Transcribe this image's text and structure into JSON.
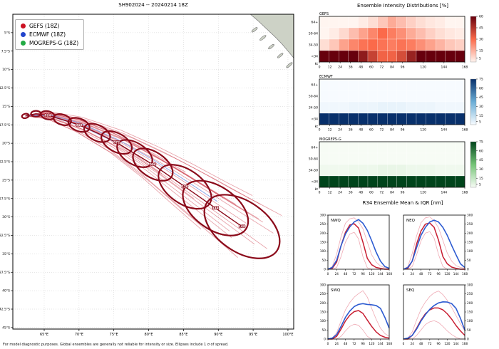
{
  "title": "SH902024 -- 20240214 18Z",
  "footer": "For model diagnostic purposes. Global ensembles are generally not reliable for intensity or size. Ellipses include 1 σ of spread.",
  "sections": {
    "intensity_title": "Ensemble Intensity Distributions [%]",
    "r34_title": "R34 Ensemble Mean & IQR [nm]"
  },
  "legend": {
    "items": [
      {
        "label": "GEFS (18Z)",
        "color": "#cc1122"
      },
      {
        "label": "ECMWF (18Z)",
        "color": "#2244cc"
      },
      {
        "label": "MOGREPS-G (18Z)",
        "color": "#22aa44"
      }
    ]
  },
  "chart_data": [
    {
      "id": "track_map",
      "type": "scatter",
      "title": "SH902024 -- 20240214 18Z",
      "xlim": [
        60.5,
        100.8
      ],
      "ylim": [
        -45.2,
        -2.5
      ],
      "xticks": [
        65,
        70,
        75,
        80,
        85,
        90,
        95,
        100
      ],
      "xtick_labels": [
        "65°E",
        "70°E",
        "75°E",
        "80°E",
        "85°E",
        "90°E",
        "95°E",
        "100°E"
      ],
      "yticks": [
        5,
        7.5,
        10,
        12.5,
        15,
        17.5,
        20,
        22.5,
        25,
        27.5,
        30,
        32.5,
        35,
        37.5,
        40,
        42.5,
        45
      ],
      "ytick_labels": [
        "5°S",
        "7.5°S",
        "10°S",
        "12.5°S",
        "15°S",
        "17.5°S",
        "20°S",
        "22.5°S",
        "25°S",
        "27.5°S",
        "30°S",
        "32.5°S",
        "35°S",
        "37.5°S",
        "40°S",
        "42.5°S",
        "45°S"
      ],
      "land": {
        "fill": "#cdd2c6",
        "stroke": "#777777",
        "main": [
          [
            94.6,
            -2.5
          ],
          [
            95.6,
            -3.3
          ],
          [
            96.5,
            -4.1
          ],
          [
            97.4,
            -4.9
          ],
          [
            98.3,
            -5.7
          ],
          [
            99.2,
            -6.6
          ],
          [
            100.1,
            -7.6
          ],
          [
            100.8,
            -8.4
          ],
          [
            100.8,
            -2.5
          ]
        ],
        "islands": [
          [
            95.2,
            -4.6,
            0.5,
            0.15,
            -38
          ],
          [
            96.4,
            -5.7,
            0.55,
            0.16,
            -38
          ],
          [
            97.6,
            -6.9,
            0.5,
            0.15,
            -38
          ],
          [
            98.9,
            -8.1,
            0.5,
            0.14,
            -40
          ],
          [
            100.2,
            -9.4,
            0.55,
            0.15,
            -40
          ]
        ]
      },
      "mean_track": {
        "hours": [
          0,
          12,
          24,
          36,
          48,
          60,
          72,
          84,
          96,
          120,
          144,
          168
        ],
        "lon": [
          62.3,
          63.8,
          65.5,
          67.6,
          70.0,
          72.6,
          75.4,
          78.0,
          80.6,
          85.2,
          89.6,
          93.4
        ],
        "lat": [
          -16.3,
          -16.0,
          -16.2,
          -16.8,
          -17.5,
          -18.6,
          -19.9,
          -21.4,
          -22.9,
          -25.9,
          -28.8,
          -31.3
        ],
        "rx": [
          0.5,
          0.7,
          1.0,
          1.3,
          1.6,
          2.0,
          2.4,
          2.8,
          3.2,
          4.3,
          5.3,
          6.1
        ],
        "ry": [
          0.3,
          0.4,
          0.55,
          0.7,
          0.85,
          1.05,
          1.25,
          1.45,
          1.7,
          2.3,
          2.9,
          3.4
        ],
        "labels": {
          "hours": [
            24,
            48,
            72,
            96,
            120,
            144,
            168
          ],
          "text": [
            "024",
            "048",
            "072",
            "096",
            "120",
            "144",
            "168"
          ]
        },
        "color": "#8b0a1a"
      },
      "members": {
        "hours": [
          0,
          24,
          48,
          72,
          96,
          120,
          144,
          168
        ],
        "base_lon": [
          62.3,
          65.5,
          70.0,
          75.4,
          80.6,
          85.2,
          89.6,
          93.4
        ],
        "base_lat": [
          -16.3,
          -16.2,
          -17.5,
          -19.9,
          -22.9,
          -25.9,
          -28.8,
          -31.3
        ],
        "spread": [
          0,
          0.35,
          0.75,
          1.2,
          1.7,
          2.2,
          2.6,
          3.0
        ],
        "gefs_offsets": [
          [
            0.3,
            0.6,
            8
          ],
          [
            -0.5,
            -0.5,
            8
          ],
          [
            1.0,
            0.2,
            8
          ],
          [
            -1.2,
            0.5,
            7
          ],
          [
            0.6,
            -0.8,
            8
          ],
          [
            -0.3,
            1.0,
            8
          ],
          [
            1.5,
            -0.3,
            8
          ],
          [
            -0.8,
            -1.1,
            7
          ],
          [
            0.2,
            0.15,
            8
          ],
          [
            -1.5,
            0.8,
            6
          ],
          [
            0.9,
            1.0,
            8
          ],
          [
            -0.6,
            -0.2,
            8
          ],
          [
            1.9,
            0.5,
            8
          ],
          [
            -1.0,
            -0.7,
            7
          ],
          [
            0.5,
            1.4,
            8
          ],
          [
            -0.2,
            -1.4,
            8
          ],
          [
            1.2,
            -1.0,
            8
          ],
          [
            0.05,
            0.9,
            6
          ],
          [
            -0.9,
            1.3,
            8
          ],
          [
            0.8,
            0.35,
            8
          ]
        ],
        "ecmwf_offsets": [
          [
            0.1,
            0.35,
            7
          ],
          [
            0.25,
            -0.15,
            6
          ]
        ],
        "gefs_color": "rgba(205,55,70,0.45)",
        "ecmwf_color": "rgba(125,155,230,0.85)"
      }
    },
    {
      "id": "intensity",
      "type": "heatmap",
      "rows": [
        "64+",
        "50-64",
        "34-50",
        "<34"
      ],
      "unit": "kt",
      "hours": [
        0,
        12,
        24,
        36,
        48,
        60,
        72,
        84,
        96,
        108,
        120,
        132,
        144,
        156,
        168
      ],
      "xticks": [
        0,
        12,
        24,
        36,
        48,
        60,
        72,
        84,
        96,
        120,
        144,
        168
      ],
      "panels": [
        {
          "name": "GEFS",
          "cmap": [
            "#fff5f0",
            "#fb6a4a",
            "#67000d"
          ],
          "vmax": 60,
          "cbar_ticks": [
            60,
            45,
            30,
            15,
            5
          ],
          "values": [
            [
              0,
              0,
              0,
              0,
              2,
              5,
              10,
              16,
              12,
              8,
              5,
              3,
              2,
              0,
              0
            ],
            [
              0,
              2,
              6,
              12,
              18,
              24,
              30,
              26,
              22,
              16,
              12,
              8,
              5,
              3,
              2
            ],
            [
              5,
              10,
              18,
              24,
              28,
              30,
              28,
              26,
              28,
              26,
              22,
              18,
              14,
              10,
              8
            ],
            [
              95,
              88,
              76,
              64,
              52,
              41,
              32,
              32,
              38,
              50,
              61,
              71,
              79,
              87,
              90
            ]
          ]
        },
        {
          "name": "ECMWF",
          "cmap": [
            "#f7fbff",
            "#6baed6",
            "#08306b"
          ],
          "vmax": 75,
          "cbar_ticks": [
            75,
            60,
            45,
            30,
            15,
            5
          ],
          "values": [
            [
              0,
              0,
              0,
              0,
              0,
              0,
              0,
              0,
              0,
              0,
              0,
              0,
              0,
              0,
              0
            ],
            [
              0,
              0,
              0,
              0,
              0,
              0,
              0,
              0,
              0,
              0,
              0,
              0,
              0,
              0,
              0
            ],
            [
              2,
              2,
              2,
              3,
              3,
              3,
              4,
              4,
              4,
              3,
              3,
              3,
              2,
              2,
              2
            ],
            [
              98,
              98,
              98,
              97,
              97,
              97,
              96,
              96,
              96,
              97,
              97,
              97,
              98,
              98,
              98
            ]
          ]
        },
        {
          "name": "MOGREPS-G",
          "cmap": [
            "#f7fcf5",
            "#74c476",
            "#00441b"
          ],
          "vmax": 75,
          "cbar_ticks": [
            75,
            60,
            45,
            30,
            15,
            5
          ],
          "values": [
            [
              0,
              0,
              0,
              0,
              0,
              0,
              0,
              0,
              0,
              0,
              0,
              0,
              0,
              0,
              0
            ],
            [
              0,
              0,
              0,
              0,
              0,
              0,
              0,
              0,
              0,
              0,
              0,
              0,
              0,
              0,
              0
            ],
            [
              2,
              2,
              2,
              3,
              3,
              3,
              4,
              4,
              4,
              3,
              3,
              3,
              2,
              2,
              2
            ],
            [
              98,
              98,
              98,
              97,
              97,
              97,
              96,
              96,
              96,
              97,
              97,
              97,
              98,
              98,
              98
            ]
          ]
        }
      ]
    },
    {
      "id": "r34",
      "type": "line",
      "hours": [
        0,
        12,
        24,
        36,
        48,
        60,
        72,
        84,
        96,
        108,
        120,
        132,
        144,
        156,
        168
      ],
      "ylim": [
        0,
        300
      ],
      "yticks": [
        0,
        50,
        100,
        150,
        200,
        250,
        300
      ],
      "xticks": [
        0,
        24,
        48,
        72,
        96,
        120,
        144,
        168
      ],
      "colors": {
        "gefs": "#c81e32",
        "iqr": "#efaab4",
        "ecmwf": "#2d5bd1"
      },
      "panels": [
        {
          "name": "NWQ",
          "side": "left",
          "gefs": [
            0,
            5,
            40,
            130,
            205,
            245,
            252,
            228,
            150,
            60,
            25,
            10,
            5,
            0,
            0
          ],
          "iqr_hi": [
            0,
            15,
            85,
            180,
            255,
            280,
            285,
            262,
            225,
            150,
            80,
            40,
            18,
            8,
            4
          ],
          "iqr_lo": [
            0,
            0,
            10,
            70,
            150,
            195,
            205,
            168,
            70,
            8,
            0,
            0,
            0,
            0,
            0
          ],
          "ecmwf": [
            0,
            10,
            50,
            130,
            195,
            235,
            262,
            275,
            255,
            215,
            158,
            95,
            45,
            15,
            5
          ]
        },
        {
          "name": "NEQ",
          "side": "right",
          "gefs": [
            0,
            5,
            45,
            140,
            212,
            250,
            256,
            232,
            162,
            70,
            30,
            12,
            5,
            0,
            0
          ],
          "iqr_hi": [
            0,
            15,
            88,
            185,
            258,
            285,
            290,
            268,
            230,
            160,
            90,
            45,
            20,
            10,
            5
          ],
          "iqr_lo": [
            0,
            0,
            15,
            80,
            158,
            200,
            208,
            172,
            82,
            15,
            0,
            0,
            0,
            0,
            0
          ],
          "ecmwf": [
            0,
            10,
            45,
            120,
            188,
            232,
            262,
            272,
            262,
            232,
            188,
            132,
            80,
            30,
            10
          ]
        },
        {
          "name": "SWQ",
          "side": "left",
          "gefs": [
            0,
            0,
            15,
            55,
            100,
            132,
            152,
            158,
            142,
            105,
            70,
            40,
            20,
            10,
            5
          ],
          "iqr_hi": [
            0,
            5,
            35,
            100,
            162,
            202,
            232,
            252,
            268,
            232,
            170,
            110,
            60,
            30,
            15
          ],
          "iqr_lo": [
            0,
            0,
            0,
            15,
            45,
            70,
            82,
            76,
            50,
            15,
            0,
            0,
            0,
            0,
            0
          ],
          "ecmwf": [
            0,
            5,
            25,
            70,
            120,
            155,
            180,
            192,
            196,
            192,
            190,
            186,
            170,
            120,
            60
          ]
        },
        {
          "name": "SEQ",
          "side": "right",
          "gefs": [
            0,
            0,
            20,
            60,
            105,
            140,
            162,
            172,
            172,
            162,
            140,
            110,
            75,
            45,
            20
          ],
          "iqr_hi": [
            0,
            5,
            40,
            105,
            165,
            205,
            236,
            256,
            266,
            246,
            215,
            175,
            130,
            85,
            45
          ],
          "iqr_lo": [
            0,
            0,
            0,
            20,
            50,
            80,
            95,
            102,
            92,
            70,
            45,
            25,
            10,
            0,
            0
          ],
          "ecmwf": [
            0,
            5,
            20,
            55,
            100,
            135,
            165,
            186,
            200,
            206,
            205,
            196,
            170,
            115,
            50
          ]
        }
      ]
    }
  ]
}
